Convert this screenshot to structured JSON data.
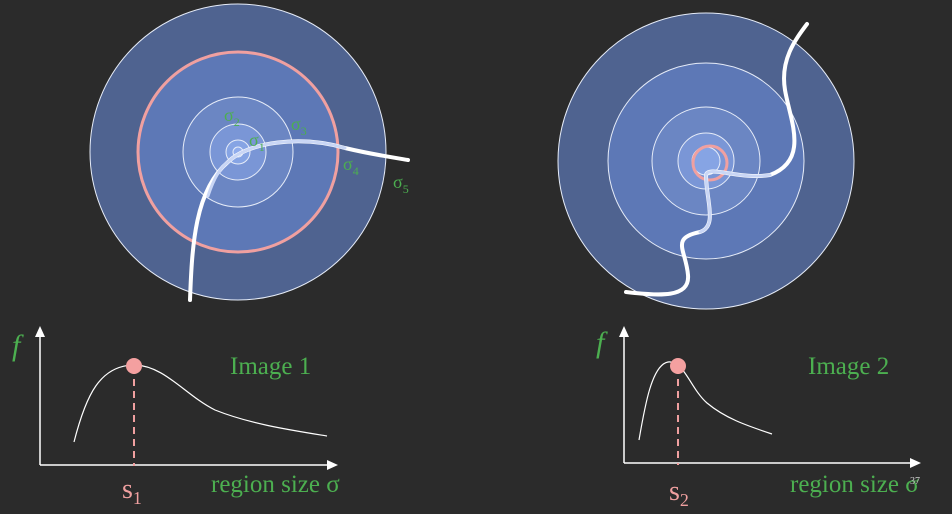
{
  "colors": {
    "background": "#2b2b2b",
    "green_text": "#4caf50",
    "pink": "#f0a0a0",
    "curve_white": "#ffffff",
    "circle_dark": "#4f6390",
    "circle_mid": "#6b86c3"
  },
  "panels": [
    {
      "sigma_labels": {
        "s1": "σ",
        "s1_sub": "1",
        "s2": "σ",
        "s2_sub": "2",
        "s3": "σ",
        "s3_sub": "3",
        "s4": "σ",
        "s4_sub": "4",
        "s5": "σ",
        "s5_sub": "5"
      },
      "plot": {
        "f_label": "f",
        "image_label": "Image 1",
        "x_axis_label": "region size σ",
        "peak_label": "s",
        "peak_sub": "1"
      }
    },
    {
      "plot": {
        "f_label": "f",
        "image_label": "Image 2",
        "x_axis_label": "region size σ",
        "peak_label": "s",
        "peak_sub": "2"
      }
    }
  ],
  "page_number": "37"
}
